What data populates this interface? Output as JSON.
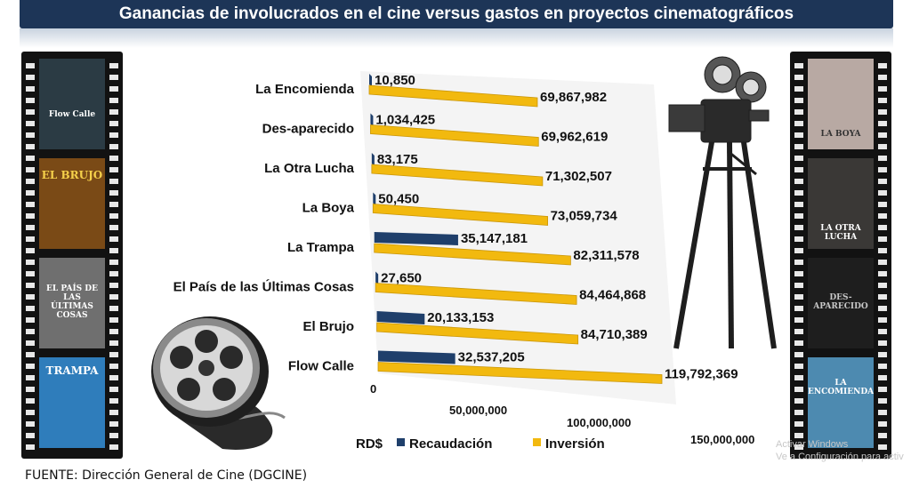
{
  "header": {
    "title": "Ganancias de involucrados en el cine versus gastos en proyectos cinematográficos"
  },
  "footer": {
    "source": "FUENTE: Dirección General de Cine (DGCINE)"
  },
  "watermark": {
    "line1": "Activar Windows",
    "line2": "Ve a Configuración para activ"
  },
  "left_posters": [
    {
      "text": "Flow Calle",
      "color": "#2b3b44"
    },
    {
      "text": "EL BRUJO",
      "color": "#7a4a16"
    },
    {
      "text": "EL PAÍS DE LAS ÚLTIMAS COSAS",
      "color": "#6f6f6f"
    },
    {
      "text": "TRAMPA",
      "color": "#2f7dbb"
    }
  ],
  "right_posters": [
    {
      "text": "LA BOYA",
      "color": "#b8a9a3"
    },
    {
      "text": "LA OTRA LUCHA",
      "color": "#3a3836"
    },
    {
      "text": "DES-APARECIDO",
      "color": "#1e1e1e"
    },
    {
      "text": "LA ENCOMIENDA",
      "color": "#4d8ab0"
    }
  ],
  "colors": {
    "recaudacion": "#1f3f6b",
    "inversion": "#f2b90f",
    "title_bg": "#1d3557"
  },
  "chart_data": {
    "type": "bar",
    "orientation": "horizontal",
    "title": "Ganancias de involucrados en el cine versus gastos en proyectos cinematográficos",
    "categories": [
      "La Encomienda",
      "Des-aparecido",
      "La Otra Lucha",
      "La Boya",
      "La Trampa",
      "El País de las Últimas Cosas",
      "El Brujo",
      "Flow Calle"
    ],
    "series": [
      {
        "name": "Recaudación",
        "values": [
          10850,
          1034425,
          83175,
          50450,
          35147181,
          27650,
          20133153,
          32537205
        ]
      },
      {
        "name": "Inversión",
        "values": [
          69867982,
          69962619,
          71302507,
          73059734,
          82311578,
          84464868,
          84710389,
          119792369
        ]
      }
    ],
    "value_labels": {
      "Recaudación": [
        "10,850",
        "1,034,425",
        "83,175",
        "50,450",
        "35,147,181",
        "27,650",
        "20,133,153",
        "32,537,205"
      ],
      "Inversión": [
        "69,867,982",
        "69,962,619",
        "71,302,507",
        "73,059,734",
        "82,311,578",
        "84,464,868",
        "84,710,389",
        "119,792,369"
      ]
    },
    "x_ticks": [
      "0",
      "50,000,000",
      "100,000,000",
      "150,000,000"
    ],
    "xlim": [
      0,
      150000000
    ],
    "legend_title": "RD$",
    "legend_position": "bottom",
    "grid": false
  }
}
